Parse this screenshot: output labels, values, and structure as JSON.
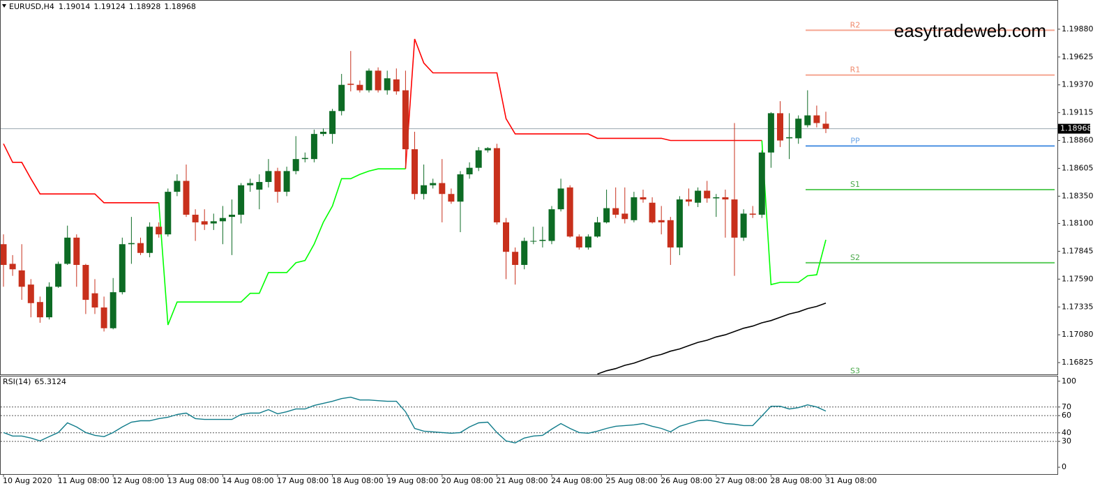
{
  "chart_data": [
    {
      "type": "candlestick",
      "title": "EURUSD,H4",
      "watermark": "easytradeweb.com",
      "categories": [
        "10 Aug 2020",
        null,
        null,
        null,
        null,
        null,
        "11 Aug 08:00",
        null,
        null,
        null,
        null,
        null,
        "12 Aug 08:00",
        null,
        null,
        null,
        null,
        null,
        "13 Aug 08:00",
        null,
        null,
        null,
        null,
        null,
        "14 Aug 08:00",
        null,
        null,
        null,
        null,
        null,
        "17 Aug 08:00",
        null,
        null,
        null,
        null,
        null,
        "18 Aug 08:00",
        null,
        null,
        null,
        null,
        null,
        "19 Aug 08:00",
        null,
        null,
        null,
        null,
        null,
        "20 Aug 08:00",
        null,
        null,
        null,
        null,
        null,
        "21 Aug 08:00",
        null,
        null,
        null,
        null,
        null,
        "24 Aug 08:00",
        null,
        null,
        null,
        null,
        null,
        "25 Aug 08:00",
        null,
        null,
        null,
        null,
        null,
        "26 Aug 08:00",
        null,
        null,
        null,
        null,
        null,
        "27 Aug 08:00",
        null,
        null,
        null,
        null,
        null,
        "28 Aug 08:00",
        null,
        null,
        null,
        null,
        null,
        "31 Aug 08:00"
      ],
      "open": [
        1.1791,
        1.1773,
        1.1767,
        1.1754,
        1.1738,
        1.1724,
        1.1752,
        1.1773,
        1.1797,
        1.1772,
        1.1746,
        1.1733,
        1.1714,
        1.1747,
        1.1791,
        1.1792,
        1.1783,
        1.1807,
        1.18,
        1.1839,
        1.1849,
        1.1818,
        1.1812,
        1.181,
        1.1812,
        1.1816,
        1.1818,
        1.1845,
        1.1841,
        1.1848,
        1.1858,
        1.1839,
        1.1858,
        1.1869,
        1.1869,
        1.1892,
        1.1892,
        1.1913,
        1.1938,
        1.1937,
        1.1932,
        1.195,
        1.1932,
        1.1942,
        1.1932,
        1.1878,
        1.1837,
        1.1845,
        1.1847,
        1.1837,
        1.183,
        1.1855,
        1.1861,
        1.1877,
        1.1879,
        1.1811,
        1.1784,
        1.1772,
        1.1794,
        1.1794,
        1.1794,
        1.1823,
        1.1843,
        1.1798,
        1.1788,
        1.1798,
        1.1811,
        1.1824,
        1.1819,
        1.1813,
        1.1834,
        1.1829,
        1.1813,
        1.1813,
        1.1788,
        1.1832,
        1.1829,
        1.184,
        1.1833,
        1.1834,
        1.1832,
        1.1797,
        1.1819,
        1.1818,
        1.1875,
        1.1911,
        1.1888,
        1.1888,
        1.19,
        1.1909,
        1.19014
      ],
      "high": [
        1.18,
        1.1781,
        1.1791,
        1.1759,
        1.1743,
        1.1756,
        1.1775,
        1.1808,
        1.18,
        1.1773,
        1.1759,
        1.1743,
        1.176,
        1.1797,
        1.1816,
        1.1797,
        1.1811,
        1.1811,
        1.1842,
        1.1855,
        1.1864,
        1.1823,
        1.1823,
        1.1819,
        1.1826,
        1.1832,
        1.1847,
        1.1851,
        1.1855,
        1.1869,
        1.1861,
        1.1862,
        1.189,
        1.1875,
        1.1896,
        1.1897,
        1.1915,
        1.1947,
        1.1968,
        1.1941,
        1.1952,
        1.1953,
        1.195,
        1.1952,
        1.195,
        1.1894,
        1.1864,
        1.1851,
        1.1869,
        1.1842,
        1.1858,
        1.1866,
        1.188,
        1.188,
        1.1883,
        1.1815,
        1.1788,
        1.1797,
        1.1807,
        1.1807,
        1.1826,
        1.1851,
        1.1845,
        1.18,
        1.18,
        1.1816,
        1.1841,
        1.1843,
        1.1843,
        1.1839,
        1.1841,
        1.1834,
        1.1826,
        1.1816,
        1.1835,
        1.1842,
        1.1843,
        1.1849,
        1.1837,
        1.1841,
        1.1902,
        1.1823,
        1.1826,
        1.1877,
        1.1912,
        1.1922,
        1.1911,
        1.1909,
        1.1932,
        1.1918,
        1.19124
      ],
      "low": [
        1.1752,
        1.1762,
        1.174,
        1.1724,
        1.1719,
        1.1722,
        1.1751,
        1.1772,
        1.1752,
        1.1727,
        1.1727,
        1.1711,
        1.1713,
        1.1745,
        1.1773,
        1.1781,
        1.1779,
        1.1797,
        1.1798,
        1.1835,
        1.1816,
        1.1794,
        1.1804,
        1.1804,
        1.1791,
        1.1781,
        1.181,
        1.1839,
        1.1823,
        1.1843,
        1.1829,
        1.1835,
        1.1855,
        1.1866,
        1.1866,
        1.189,
        1.1883,
        1.1909,
        1.1931,
        1.193,
        1.193,
        1.193,
        1.1928,
        1.1928,
        1.1861,
        1.1832,
        1.1832,
        1.1842,
        1.1811,
        1.1828,
        1.1802,
        1.1851,
        1.1858,
        1.1875,
        1.1809,
        1.1759,
        1.1754,
        1.1768,
        1.1791,
        1.1788,
        1.1791,
        1.1821,
        1.1797,
        1.1786,
        1.1786,
        1.1797,
        1.181,
        1.1815,
        1.181,
        1.1811,
        1.1829,
        1.181,
        1.18,
        1.1772,
        1.1781,
        1.1826,
        1.1825,
        1.1829,
        1.1816,
        1.1797,
        1.1762,
        1.1794,
        1.1815,
        1.1815,
        1.1861,
        1.188,
        1.1869,
        1.1883,
        1.1898,
        1.1898,
        1.18928
      ],
      "close": [
        1.1772,
        1.1768,
        1.1752,
        1.1737,
        1.1724,
        1.1752,
        1.1773,
        1.1797,
        1.1772,
        1.174,
        1.1733,
        1.1714,
        1.1747,
        1.1791,
        1.1792,
        1.1783,
        1.1807,
        1.18,
        1.1839,
        1.1849,
        1.1818,
        1.1811,
        1.1809,
        1.1812,
        1.1815,
        1.1818,
        1.1845,
        1.1847,
        1.1848,
        1.1858,
        1.1839,
        1.1858,
        1.1869,
        1.187,
        1.1892,
        1.1894,
        1.1913,
        1.1937,
        1.1937,
        1.1932,
        1.195,
        1.1932,
        1.1943,
        1.1931,
        1.1878,
        1.1837,
        1.1845,
        1.1847,
        1.1837,
        1.183,
        1.1855,
        1.1861,
        1.1877,
        1.1879,
        1.1811,
        1.1784,
        1.1772,
        1.1794,
        1.1794,
        1.1795,
        1.1823,
        1.1842,
        1.1798,
        1.1788,
        1.1798,
        1.1811,
        1.1824,
        1.1818,
        1.1814,
        1.1834,
        1.1832,
        1.1811,
        1.1811,
        1.1788,
        1.1832,
        1.183,
        1.184,
        1.1833,
        1.1834,
        1.1832,
        1.1797,
        1.1819,
        1.1818,
        1.1875,
        1.1911,
        1.1886,
        1.1889,
        1.1906,
        1.1909,
        1.1902,
        1.18968
      ],
      "up_color": "#0d6b24",
      "down_color": "#c8301c",
      "lines": [
        {
          "color": "#ff0000",
          "values": [
            1.1883,
            1.1866,
            1.1866,
            1.1851,
            1.1837,
            1.1837,
            1.1837,
            1.1837,
            1.1837,
            1.1837,
            1.1837,
            1.1829,
            1.1829,
            1.1829,
            1.1829,
            1.1829,
            1.1829,
            1.1829,
            null,
            null,
            null,
            null,
            null,
            null,
            null,
            null,
            null,
            null,
            null,
            null,
            null,
            null,
            null,
            null,
            null,
            null,
            null,
            null,
            null,
            null,
            null,
            null,
            null,
            null,
            1.186,
            1.1979,
            1.1957,
            1.1948,
            1.1948,
            1.1948,
            1.1948,
            1.1948,
            1.1948,
            1.1948,
            1.1948,
            1.1906,
            1.1892,
            1.1892,
            1.1892,
            1.1892,
            1.1892,
            1.1892,
            1.1892,
            1.1892,
            1.1892,
            1.1888,
            1.1888,
            1.1888,
            1.1888,
            1.1888,
            1.1888,
            1.1888,
            1.1888,
            1.1886,
            1.1886,
            1.1886,
            1.1886,
            1.1886,
            1.1886,
            1.1886,
            1.1886,
            1.1886,
            1.1886,
            1.1886,
            null,
            null,
            null,
            null,
            null,
            null,
            null
          ]
        },
        {
          "color": "#00ff00",
          "values": [
            null,
            null,
            null,
            null,
            null,
            null,
            null,
            null,
            null,
            null,
            null,
            null,
            null,
            null,
            null,
            null,
            null,
            1.1829,
            1.1717,
            1.1738,
            1.1738,
            1.1738,
            1.1738,
            1.1738,
            1.1738,
            1.1738,
            1.1738,
            1.1746,
            1.1746,
            1.1765,
            1.1765,
            1.1765,
            1.1774,
            1.1776,
            1.1791,
            1.1811,
            1.1826,
            1.1851,
            1.1851,
            1.1855,
            1.1858,
            1.186,
            1.186,
            1.186,
            1.186,
            null,
            null,
            null,
            null,
            null,
            null,
            null,
            null,
            null,
            null,
            null,
            null,
            null,
            null,
            null,
            null,
            null,
            null,
            null,
            null,
            null,
            null,
            null,
            null,
            null,
            null,
            null,
            null,
            null,
            null,
            null,
            null,
            null,
            null,
            null,
            null,
            null,
            null,
            1.1886,
            1.1754,
            1.1756,
            1.1756,
            1.1756,
            1.1762,
            1.1763,
            1.1795
          ]
        },
        {
          "color": "#000000",
          "values": [
            null,
            null,
            null,
            null,
            null,
            null,
            null,
            null,
            null,
            null,
            null,
            null,
            null,
            null,
            null,
            null,
            null,
            null,
            null,
            null,
            null,
            null,
            null,
            null,
            null,
            null,
            null,
            null,
            null,
            null,
            null,
            null,
            null,
            null,
            null,
            null,
            null,
            null,
            null,
            null,
            null,
            null,
            null,
            null,
            null,
            null,
            null,
            null,
            null,
            null,
            null,
            null,
            null,
            null,
            null,
            null,
            null,
            null,
            null,
            null,
            null,
            null,
            null,
            null,
            null,
            1.1672,
            1.1675,
            1.1677,
            1.168,
            1.1682,
            1.1685,
            1.1688,
            1.169,
            1.1693,
            1.1695,
            1.1698,
            1.1701,
            1.1703,
            1.1706,
            1.1708,
            1.1711,
            1.1714,
            1.1716,
            1.1719,
            1.1721,
            1.1724,
            1.1727,
            1.1729,
            1.1732,
            1.1734,
            1.1737
          ]
        }
      ],
      "levels": [
        {
          "name": "R2",
          "value": 1.1987,
          "color": "#f5a590",
          "label_color": "#f08a6c"
        },
        {
          "name": "R1",
          "value": 1.1946,
          "color": "#f5a590",
          "label_color": "#f08a6c"
        },
        {
          "name": "PP",
          "value": 1.1881,
          "color": "#4a90e2",
          "label_color": "#6aa4e6"
        },
        {
          "name": "S1",
          "value": 1.1841,
          "color": "#5ccc5c",
          "label_color": "#4aa84a"
        },
        {
          "name": "S2",
          "value": 1.1774,
          "color": "#5ccc5c",
          "label_color": "#4aa84a"
        },
        {
          "name": "S3",
          "value": 1.167,
          "color": "#5ccc5c",
          "label_color": "#4aa84a"
        }
      ],
      "ylim": [
        1.16717,
        1.20141
      ],
      "yticks": [
        {
          "value": 1.1988,
          "label": "1.19880"
        },
        1.19625,
        {
          "value": 1.1937,
          "label": "1.19370"
        },
        1.19115,
        {
          "value": 1.1886,
          "label": "1.18860"
        },
        1.18605,
        {
          "value": 1.1835,
          "label": "1.18350"
        },
        {
          "value": 1.181,
          "label": "1.18100"
        },
        1.17845,
        {
          "value": 1.1759,
          "label": "1.17590"
        },
        1.17335,
        {
          "value": 1.1708,
          "label": "1.17080"
        },
        1.16825
      ],
      "price_line_color": "#9aa6ae"
    },
    {
      "type": "line",
      "title": "RSI(14)",
      "series": [
        {
          "color": "#0f7b8a",
          "values": [
            40.3,
            36.3,
            36.3,
            33.9,
            30.6,
            35.5,
            40.3,
            51.6,
            46.8,
            40.3,
            37.1,
            35.5,
            40.3,
            46.8,
            52.4,
            54.0,
            54.0,
            56.5,
            58.1,
            61.3,
            62.9,
            56.5,
            55.6,
            55.6,
            55.6,
            55.6,
            61.3,
            62.9,
            62.9,
            66.9,
            62.1,
            64.5,
            67.7,
            67.7,
            71.8,
            74.2,
            76.6,
            79.8,
            81.4,
            78.2,
            78.2,
            77.4,
            76.6,
            76.6,
            64.5,
            45.1,
            41.9,
            41.1,
            40.3,
            39.5,
            40.3,
            46.8,
            51.6,
            52.4,
            40.3,
            30.6,
            28.2,
            33.9,
            36.3,
            37.1,
            44.3,
            50.8,
            45.1,
            40.3,
            39.5,
            41.9,
            45.1,
            47.6,
            48.4,
            49.2,
            50.8,
            47.6,
            45.1,
            41.1,
            47.6,
            50.8,
            54.0,
            54.8,
            53.2,
            50.8,
            50.0,
            48.4,
            48.4,
            59.6,
            70.9,
            70.9,
            67.7,
            69.3,
            72.5,
            70.1,
            65.3124
          ]
        }
      ],
      "ylim": [
        -8,
        105.5
      ],
      "yticks": [
        0,
        30,
        40,
        60,
        70,
        100
      ],
      "levels": [
        70,
        60,
        40,
        30
      ]
    }
  ]
}
